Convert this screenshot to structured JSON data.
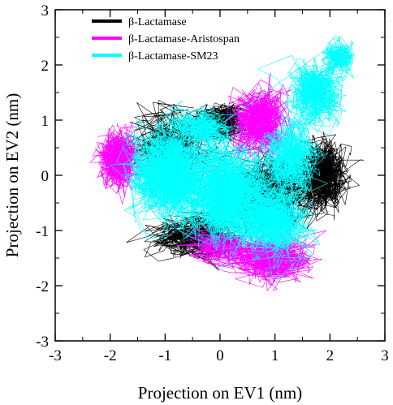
{
  "chart_data": {
    "type": "scatter",
    "title": "",
    "xlabel": "Projection on EV1 (nm)",
    "ylabel": "Projection on EV2 (nm)",
    "xlim": [
      -3,
      3
    ],
    "ylim": [
      -3,
      3
    ],
    "xticks": [
      "-3",
      "-2",
      "-1",
      "0",
      "1",
      "2",
      "3"
    ],
    "yticks": [
      "-3",
      "-2",
      "-1",
      "0",
      "1",
      "2",
      "3"
    ],
    "grid": false,
    "legend_position": "top-left",
    "series": [
      {
        "name": "β-Lactamase",
        "color": "#000000",
        "clusters": [
          {
            "cx": 0.0,
            "cy": 0.95,
            "sx": 0.3,
            "sy": 0.22,
            "n": 700
          },
          {
            "cx": 1.9,
            "cy": 0.0,
            "sx": 0.28,
            "sy": 0.4,
            "n": 900
          },
          {
            "cx": -0.4,
            "cy": -1.1,
            "sx": 0.5,
            "sy": 0.25,
            "n": 700
          },
          {
            "cx": 0.9,
            "cy": -0.3,
            "sx": 0.6,
            "sy": 0.45,
            "n": 600
          },
          {
            "cx": -0.9,
            "cy": 0.5,
            "sx": 0.5,
            "sy": 0.4,
            "n": 400
          }
        ]
      },
      {
        "name": "β-Lactamase-Aristospan",
        "color": "#ff00ff",
        "clusters": [
          {
            "cx": -1.85,
            "cy": 0.3,
            "sx": 0.22,
            "sy": 0.32,
            "n": 900
          },
          {
            "cx": 0.75,
            "cy": 1.0,
            "sx": 0.3,
            "sy": 0.38,
            "n": 900
          },
          {
            "cx": 0.9,
            "cy": -1.5,
            "sx": 0.45,
            "sy": 0.25,
            "n": 900
          },
          {
            "cx": 0.0,
            "cy": -1.3,
            "sx": 0.35,
            "sy": 0.2,
            "n": 400
          }
        ]
      },
      {
        "name": "β-Lactamase-SM23",
        "color": "#00ffff",
        "clusters": [
          {
            "cx": -0.9,
            "cy": 0.05,
            "sx": 0.45,
            "sy": 0.5,
            "n": 1500
          },
          {
            "cx": 0.15,
            "cy": -0.35,
            "sx": 0.5,
            "sy": 0.55,
            "n": 1400
          },
          {
            "cx": 1.0,
            "cy": -0.8,
            "sx": 0.4,
            "sy": 0.4,
            "n": 1000
          },
          {
            "cx": 1.3,
            "cy": 0.3,
            "sx": 0.3,
            "sy": 0.4,
            "n": 700
          },
          {
            "cx": 1.75,
            "cy": 1.5,
            "sx": 0.3,
            "sy": 0.35,
            "n": 800
          },
          {
            "cx": 2.15,
            "cy": 2.1,
            "sx": 0.18,
            "sy": 0.2,
            "n": 450
          },
          {
            "cx": -0.3,
            "cy": 0.85,
            "sx": 0.35,
            "sy": 0.2,
            "n": 500
          }
        ]
      }
    ]
  }
}
